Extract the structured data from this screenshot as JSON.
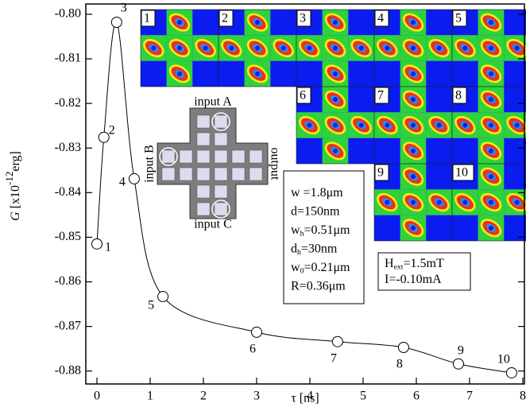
{
  "chart_data": {
    "type": "line",
    "y_label": [
      {
        "t": "G",
        "italic": true
      },
      {
        "t": " [x10"
      },
      {
        "t": "-12",
        "sup": true
      },
      {
        "t": "erg]"
      }
    ],
    "x_label": "τ [ns]",
    "x": [
      0.0,
      0.13,
      0.37,
      0.7,
      1.24,
      3.0,
      4.52,
      5.76,
      6.79,
      7.79
    ],
    "series": [
      {
        "color": "#000000",
        "values": [
          -0.8515,
          -0.8276,
          -0.8018,
          -0.8369,
          -0.8633,
          -0.8713,
          -0.8734,
          -0.8747,
          -0.8784,
          -0.8804
        ],
        "point_labels": [
          "1",
          "2",
          "3",
          "4",
          "5",
          "6",
          "7",
          "8",
          "9",
          "10"
        ]
      }
    ],
    "xlim": [
      -0.209,
      8.03
    ],
    "ylim": [
      -0.7977,
      -0.8829
    ],
    "xticks": [
      0,
      1,
      2,
      3,
      4,
      5,
      6,
      7,
      8
    ],
    "yticks": [
      {
        "value": -0.8,
        "label": "-0.80"
      },
      -0.81,
      -0.82,
      -0.83,
      -0.84,
      -0.85,
      -0.86,
      -0.87,
      -0.88
    ],
    "panels": [
      "1",
      "2",
      "3",
      "4",
      "5",
      "6",
      "7",
      "8",
      "9",
      "10"
    ],
    "device_labels": [
      "input A",
      "input B",
      "input C",
      "output"
    ],
    "params": [
      [
        {
          "t": "w =1.8μm"
        }
      ],
      [
        {
          "t": "d=150nm"
        }
      ],
      [
        {
          "t": "w"
        },
        {
          "t": "h",
          "sub": true
        },
        {
          "t": "=0.51μm"
        }
      ],
      [
        {
          "t": "d"
        },
        {
          "t": "h",
          "sub": true
        },
        {
          "t": "=30nm"
        }
      ],
      [
        {
          "t": "w"
        },
        {
          "t": "0",
          "sub": true
        },
        {
          "t": "=0.21μm"
        }
      ],
      [
        {
          "t": "R=0.36μm"
        }
      ]
    ],
    "conditions": [
      [
        {
          "t": "H"
        },
        {
          "t": "ext",
          "sub": true
        },
        {
          "t": "=1.5mT"
        }
      ],
      [
        {
          "t": "I=-0.10mA"
        }
      ]
    ]
  }
}
